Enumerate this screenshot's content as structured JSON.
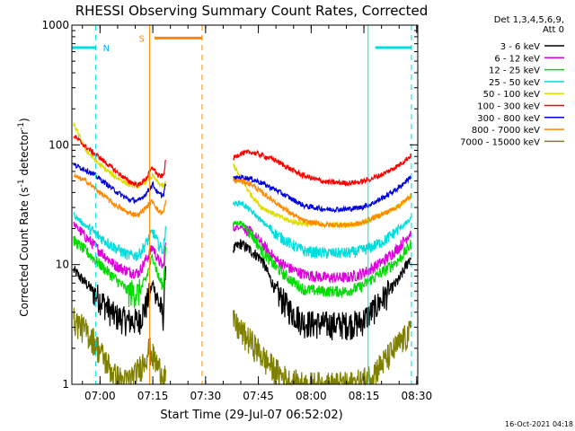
{
  "chart_data": {
    "type": "line",
    "title": "RHESSI Observing Summary Count Rates, Corrected",
    "xlabel": "Start Time (29-Jul-07 06:52:02)",
    "ylabel_main": "Corrected Count Rate (s",
    "ylabel_sup1": "-1",
    "ylabel_mid": " detector",
    "ylabel_sup2": "-1",
    "ylabel_end": ")",
    "y_scale": "log",
    "ylim": [
      1,
      1000
    ],
    "xlim_minutes": [
      52.0,
      150.3
    ],
    "x_ticks": [
      {
        "m": 60,
        "label": "07:00"
      },
      {
        "m": 75,
        "label": "07:15"
      },
      {
        "m": 90,
        "label": "07:30"
      },
      {
        "m": 105,
        "label": "07:45"
      },
      {
        "m": 120,
        "label": "08:00"
      },
      {
        "m": 135,
        "label": "08:15"
      },
      {
        "m": 150,
        "label": "08:30"
      }
    ],
    "y_ticks": [
      {
        "v": 1,
        "label": "1"
      },
      {
        "v": 10,
        "label": "10"
      },
      {
        "v": 100,
        "label": "100"
      },
      {
        "v": 1000,
        "label": "1000"
      }
    ],
    "legend_header": [
      "Det 1,3,4,5,6,9,",
      "Att 0"
    ],
    "legend_position": "right",
    "footer_date": "16-Oct-2021 04:18",
    "night_label": "N",
    "saa_label": "S",
    "night_intervals": [
      [
        52.0,
        58.8
      ],
      [
        138.2,
        148.5
      ]
    ],
    "night_bar_y": 650,
    "saa_interval": [
      75.5,
      89.0
    ],
    "saa_bar_y": 780,
    "markers": [
      {
        "m": 58.8,
        "color": "#00dddd",
        "dash": true
      },
      {
        "m": 74.1,
        "color": "#ff8800",
        "dash": false
      },
      {
        "m": 89.0,
        "color": "#ff8800",
        "dash": true
      },
      {
        "m": 136.2,
        "color": "#00dddd",
        "dash": false
      },
      {
        "m": 148.5,
        "color": "#00dddd",
        "dash": true
      }
    ],
    "data_gap": [
      78.7,
      97.8
    ],
    "series": [
      {
        "name": "3 - 6 keV",
        "color": "#000000",
        "points": [
          [
            52.5,
            9
          ],
          [
            56,
            7
          ],
          [
            60,
            5.2
          ],
          [
            64,
            3.8
          ],
          [
            68,
            3.4
          ],
          [
            71,
            3.4
          ],
          [
            73,
            4.5
          ],
          [
            75,
            7
          ],
          [
            76.5,
            5
          ],
          [
            78,
            3.7
          ],
          [
            78.7,
            10.5
          ],
          [
            98,
            13.5
          ],
          [
            100,
            15
          ],
          [
            103,
            13
          ],
          [
            106,
            11
          ],
          [
            110,
            6
          ],
          [
            114,
            4.2
          ],
          [
            118,
            3.3
          ],
          [
            124,
            3.2
          ],
          [
            130,
            3.2
          ],
          [
            134,
            3.3
          ],
          [
            137,
            4
          ],
          [
            141,
            5.5
          ],
          [
            145,
            7.5
          ],
          [
            148.5,
            12
          ]
        ]
      },
      {
        "name": "6 - 12 keV",
        "color": "#dd00dd",
        "points": [
          [
            52.5,
            22
          ],
          [
            56,
            17
          ],
          [
            60,
            13
          ],
          [
            64,
            10
          ],
          [
            68,
            8.8
          ],
          [
            71,
            8.5
          ],
          [
            73,
            11
          ],
          [
            75,
            14
          ],
          [
            76.5,
            11
          ],
          [
            78,
            9.5
          ],
          [
            78.7,
            16
          ],
          [
            98,
            20
          ],
          [
            100,
            21
          ],
          [
            103,
            18.5
          ],
          [
            106,
            15
          ],
          [
            110,
            11
          ],
          [
            114,
            9.3
          ],
          [
            118,
            8.3
          ],
          [
            124,
            7.8
          ],
          [
            130,
            7.8
          ],
          [
            134,
            8.3
          ],
          [
            137,
            9.2
          ],
          [
            141,
            11
          ],
          [
            145,
            14
          ],
          [
            148.5,
            19
          ]
        ]
      },
      {
        "name": "12 - 25 keV",
        "color": "#00dd00",
        "points": [
          [
            52.5,
            16
          ],
          [
            56,
            13
          ],
          [
            60,
            10
          ],
          [
            64,
            7.8
          ],
          [
            68,
            6
          ],
          [
            71,
            5.8
          ],
          [
            73,
            7.5
          ],
          [
            75,
            12
          ],
          [
            76.5,
            8
          ],
          [
            78,
            6.5
          ],
          [
            78.7,
            16
          ],
          [
            98,
            22
          ],
          [
            100,
            22.5
          ],
          [
            103,
            18
          ],
          [
            106,
            13
          ],
          [
            110,
            9.5
          ],
          [
            114,
            7.5
          ],
          [
            118,
            6.2
          ],
          [
            124,
            6
          ],
          [
            130,
            6
          ],
          [
            134,
            6.5
          ],
          [
            137,
            7.5
          ],
          [
            141,
            9
          ],
          [
            145,
            11
          ],
          [
            148.5,
            15
          ]
        ]
      },
      {
        "name": "25 - 50 keV",
        "color": "#00dddd",
        "points": [
          [
            52.5,
            26
          ],
          [
            56,
            21
          ],
          [
            60,
            17
          ],
          [
            64,
            14
          ],
          [
            68,
            12
          ],
          [
            71,
            12
          ],
          [
            73,
            15
          ],
          [
            75,
            19
          ],
          [
            76.5,
            15
          ],
          [
            78,
            13
          ],
          [
            78.7,
            22
          ],
          [
            98,
            32
          ],
          [
            100,
            33
          ],
          [
            103,
            28
          ],
          [
            106,
            23
          ],
          [
            110,
            18
          ],
          [
            114,
            15
          ],
          [
            118,
            13
          ],
          [
            124,
            12.5
          ],
          [
            130,
            12.5
          ],
          [
            134,
            13
          ],
          [
            137,
            14
          ],
          [
            141,
            16
          ],
          [
            145,
            20
          ],
          [
            148.5,
            24
          ]
        ]
      },
      {
        "name": "50 - 100 keV",
        "color": "#dddd00",
        "points": [
          [
            52.5,
            150
          ],
          [
            56,
            90
          ],
          [
            60,
            68
          ],
          [
            64,
            55
          ],
          [
            68,
            47
          ],
          [
            71,
            45
          ],
          [
            73,
            50
          ],
          [
            75,
            55
          ],
          [
            76.5,
            48
          ],
          [
            78,
            45
          ],
          [
            78.7,
            48
          ],
          [
            98,
            68
          ],
          [
            100,
            52
          ],
          [
            103,
            38
          ],
          [
            106,
            30
          ],
          [
            110,
            26
          ],
          [
            114,
            23
          ],
          [
            118,
            22
          ],
          [
            124,
            21.5
          ],
          [
            130,
            21.5
          ],
          [
            134,
            22
          ],
          [
            137,
            24
          ],
          [
            141,
            27
          ],
          [
            145,
            31
          ],
          [
            148.5,
            38
          ]
        ]
      },
      {
        "name": "100 - 300 keV",
        "color": "#ff0000",
        "points": [
          [
            52.5,
            120
          ],
          [
            56,
            96
          ],
          [
            60,
            78
          ],
          [
            64,
            62
          ],
          [
            68,
            50
          ],
          [
            71,
            46
          ],
          [
            73,
            52
          ],
          [
            75,
            65
          ],
          [
            76.5,
            55
          ],
          [
            78,
            55
          ],
          [
            78.7,
            74
          ],
          [
            98,
            78
          ],
          [
            100,
            85
          ],
          [
            103,
            87
          ],
          [
            106,
            82
          ],
          [
            110,
            74
          ],
          [
            114,
            63
          ],
          [
            118,
            55
          ],
          [
            124,
            49
          ],
          [
            130,
            48
          ],
          [
            134,
            49
          ],
          [
            137,
            52
          ],
          [
            141,
            58
          ],
          [
            145,
            68
          ],
          [
            148.5,
            82
          ]
        ]
      },
      {
        "name": "300 - 800 keV",
        "color": "#0000dd",
        "points": [
          [
            52.5,
            68
          ],
          [
            56,
            62
          ],
          [
            60,
            52
          ],
          [
            64,
            42
          ],
          [
            68,
            35
          ],
          [
            71,
            34
          ],
          [
            73,
            39
          ],
          [
            75,
            47
          ],
          [
            76.5,
            39
          ],
          [
            78,
            38
          ],
          [
            78.7,
            48
          ],
          [
            98,
            52
          ],
          [
            100,
            54
          ],
          [
            103,
            52
          ],
          [
            106,
            48
          ],
          [
            110,
            42
          ],
          [
            114,
            36
          ],
          [
            118,
            31
          ],
          [
            124,
            29
          ],
          [
            130,
            29
          ],
          [
            134,
            30
          ],
          [
            137,
            32
          ],
          [
            141,
            37
          ],
          [
            145,
            44
          ],
          [
            148.5,
            55
          ]
        ]
      },
      {
        "name": "800 - 7000 keV",
        "color": "#ff8800",
        "points": [
          [
            52.5,
            55
          ],
          [
            56,
            50
          ],
          [
            60,
            40
          ],
          [
            64,
            32
          ],
          [
            68,
            27
          ],
          [
            71,
            26
          ],
          [
            73,
            30
          ],
          [
            75,
            34
          ],
          [
            76.5,
            28
          ],
          [
            78,
            27
          ],
          [
            78.7,
            34
          ],
          [
            98,
            50
          ],
          [
            100,
            50
          ],
          [
            103,
            47
          ],
          [
            106,
            40
          ],
          [
            110,
            33
          ],
          [
            114,
            27
          ],
          [
            118,
            23
          ],
          [
            124,
            21.5
          ],
          [
            130,
            21.5
          ],
          [
            134,
            22
          ],
          [
            137,
            24
          ],
          [
            141,
            27
          ],
          [
            145,
            31
          ],
          [
            148.5,
            38
          ]
        ]
      },
      {
        "name": "7000 - 15000 keV",
        "color": "#808000",
        "points": [
          [
            52.5,
            3.5
          ],
          [
            55,
            3
          ],
          [
            58,
            2.4
          ],
          [
            61,
            1.7
          ],
          [
            64,
            1.2
          ],
          [
            67,
            1.05
          ],
          [
            70,
            1.2
          ],
          [
            72,
            1.5
          ],
          [
            74,
            2
          ],
          [
            76,
            1.5
          ],
          [
            78,
            1.2
          ],
          [
            78.7,
            1.2
          ],
          [
            98,
            3.3
          ],
          [
            101,
            2.6
          ],
          [
            104,
            2.1
          ],
          [
            107,
            1.6
          ],
          [
            110,
            1.3
          ],
          [
            114,
            1.05
          ],
          [
            118,
            1.0
          ],
          [
            124,
            1.0
          ],
          [
            130,
            1.0
          ],
          [
            134,
            1.05
          ],
          [
            137,
            1.2
          ],
          [
            141,
            1.6
          ],
          [
            145,
            2.2
          ],
          [
            148.5,
            2.8
          ]
        ]
      }
    ]
  }
}
